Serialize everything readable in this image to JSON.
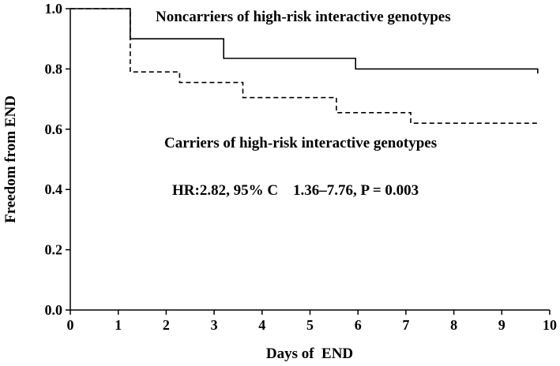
{
  "chart_data": {
    "type": "line",
    "xlabel": "Days of  END",
    "ylabel": "Freedom from END",
    "xlim": [
      0,
      10
    ],
    "ylim": [
      0,
      1
    ],
    "xticks": [
      "0",
      "1",
      "2",
      "3",
      "4",
      "5",
      "6",
      "7",
      "8",
      "9",
      "10"
    ],
    "yticks": [
      "0.0",
      "0.2",
      "0.4",
      "0.6",
      "0.8",
      "1.0"
    ],
    "series": [
      {
        "name": "Noncarriers of high-risk interactive genotypes",
        "style": "solid",
        "color": "#000000",
        "points": [
          [
            0,
            1.0
          ],
          [
            1.25,
            1.0
          ],
          [
            1.25,
            0.9
          ],
          [
            3.2,
            0.9
          ],
          [
            3.2,
            0.835
          ],
          [
            5.95,
            0.835
          ],
          [
            5.95,
            0.8
          ],
          [
            9.75,
            0.8
          ],
          [
            9.75,
            0.785
          ]
        ]
      },
      {
        "name": "Carriers of high-risk interactive genotypes",
        "style": "dashed",
        "color": "#000000",
        "points": [
          [
            0,
            1.0
          ],
          [
            1.25,
            1.0
          ],
          [
            1.25,
            0.79
          ],
          [
            2.28,
            0.79
          ],
          [
            2.28,
            0.755
          ],
          [
            3.6,
            0.755
          ],
          [
            3.6,
            0.705
          ],
          [
            5.55,
            0.705
          ],
          [
            5.55,
            0.655
          ],
          [
            7.1,
            0.655
          ],
          [
            7.1,
            0.62
          ],
          [
            9.75,
            0.62
          ],
          [
            9.75,
            0.615
          ]
        ]
      }
    ],
    "annotations": {
      "noncarriers_label": "Noncarriers of high-risk interactive genotypes",
      "carriers_label": "Carriers of high-risk interactive genotypes",
      "stats": "HR:2.82, 95% C    1.36–7.76, P = 0.003"
    }
  }
}
